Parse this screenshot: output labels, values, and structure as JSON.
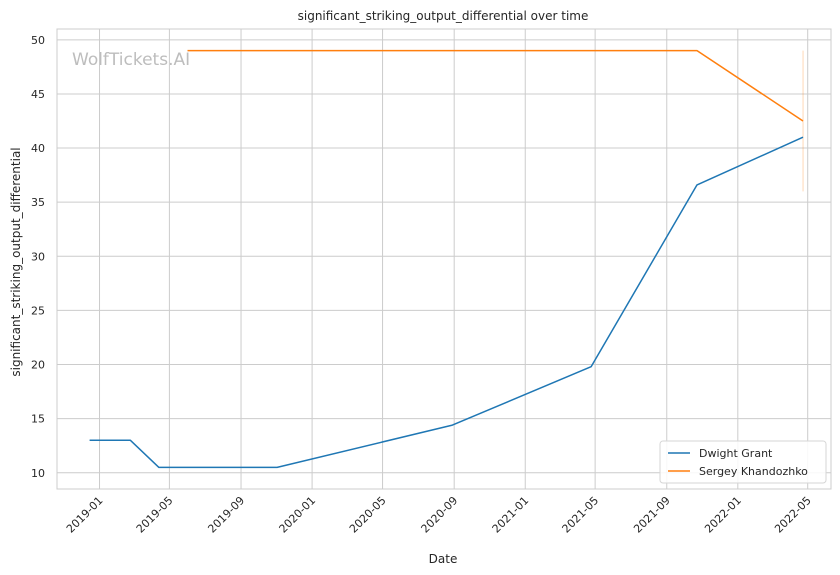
{
  "chart_data": {
    "type": "line",
    "title": "significant_striking_output_differential over time",
    "xlabel": "Date",
    "ylabel": "significant_striking_output_differential",
    "watermark": "WolfTickets.AI",
    "xlim": [
      "2018-10-20",
      "2022-06-10"
    ],
    "ylim": [
      8.5,
      51
    ],
    "x_ticks": [
      "2019-01",
      "2019-05",
      "2019-09",
      "2020-01",
      "2020-05",
      "2020-09",
      "2021-01",
      "2021-05",
      "2021-09",
      "2022-01",
      "2022-05"
    ],
    "y_ticks": [
      10,
      15,
      20,
      25,
      30,
      35,
      40,
      45,
      50
    ],
    "grid": true,
    "legend_position": "bottom-right",
    "series": [
      {
        "name": "Dwight Grant",
        "color": "#1f77b4",
        "points": [
          {
            "x": "2018-12-15",
            "y": 13
          },
          {
            "x": "2019-02-23",
            "y": 13
          },
          {
            "x": "2019-04-13",
            "y": 10.5
          },
          {
            "x": "2019-11-02",
            "y": 10.5
          },
          {
            "x": "2020-08-29",
            "y": 14.4
          },
          {
            "x": "2021-04-24",
            "y": 19.8
          },
          {
            "x": "2021-10-23",
            "y": 36.6
          },
          {
            "x": "2022-04-23",
            "y": 41
          }
        ]
      },
      {
        "name": "Sergey Khandozhko",
        "color": "#ff7f0e",
        "points": [
          {
            "x": "2019-06-01",
            "y": 49
          },
          {
            "x": "2021-10-23",
            "y": 49
          },
          {
            "x": "2022-04-23",
            "y": 42.5
          }
        ],
        "error_band": {
          "x": "2022-04-23",
          "low": 36,
          "high": 49
        }
      }
    ]
  }
}
